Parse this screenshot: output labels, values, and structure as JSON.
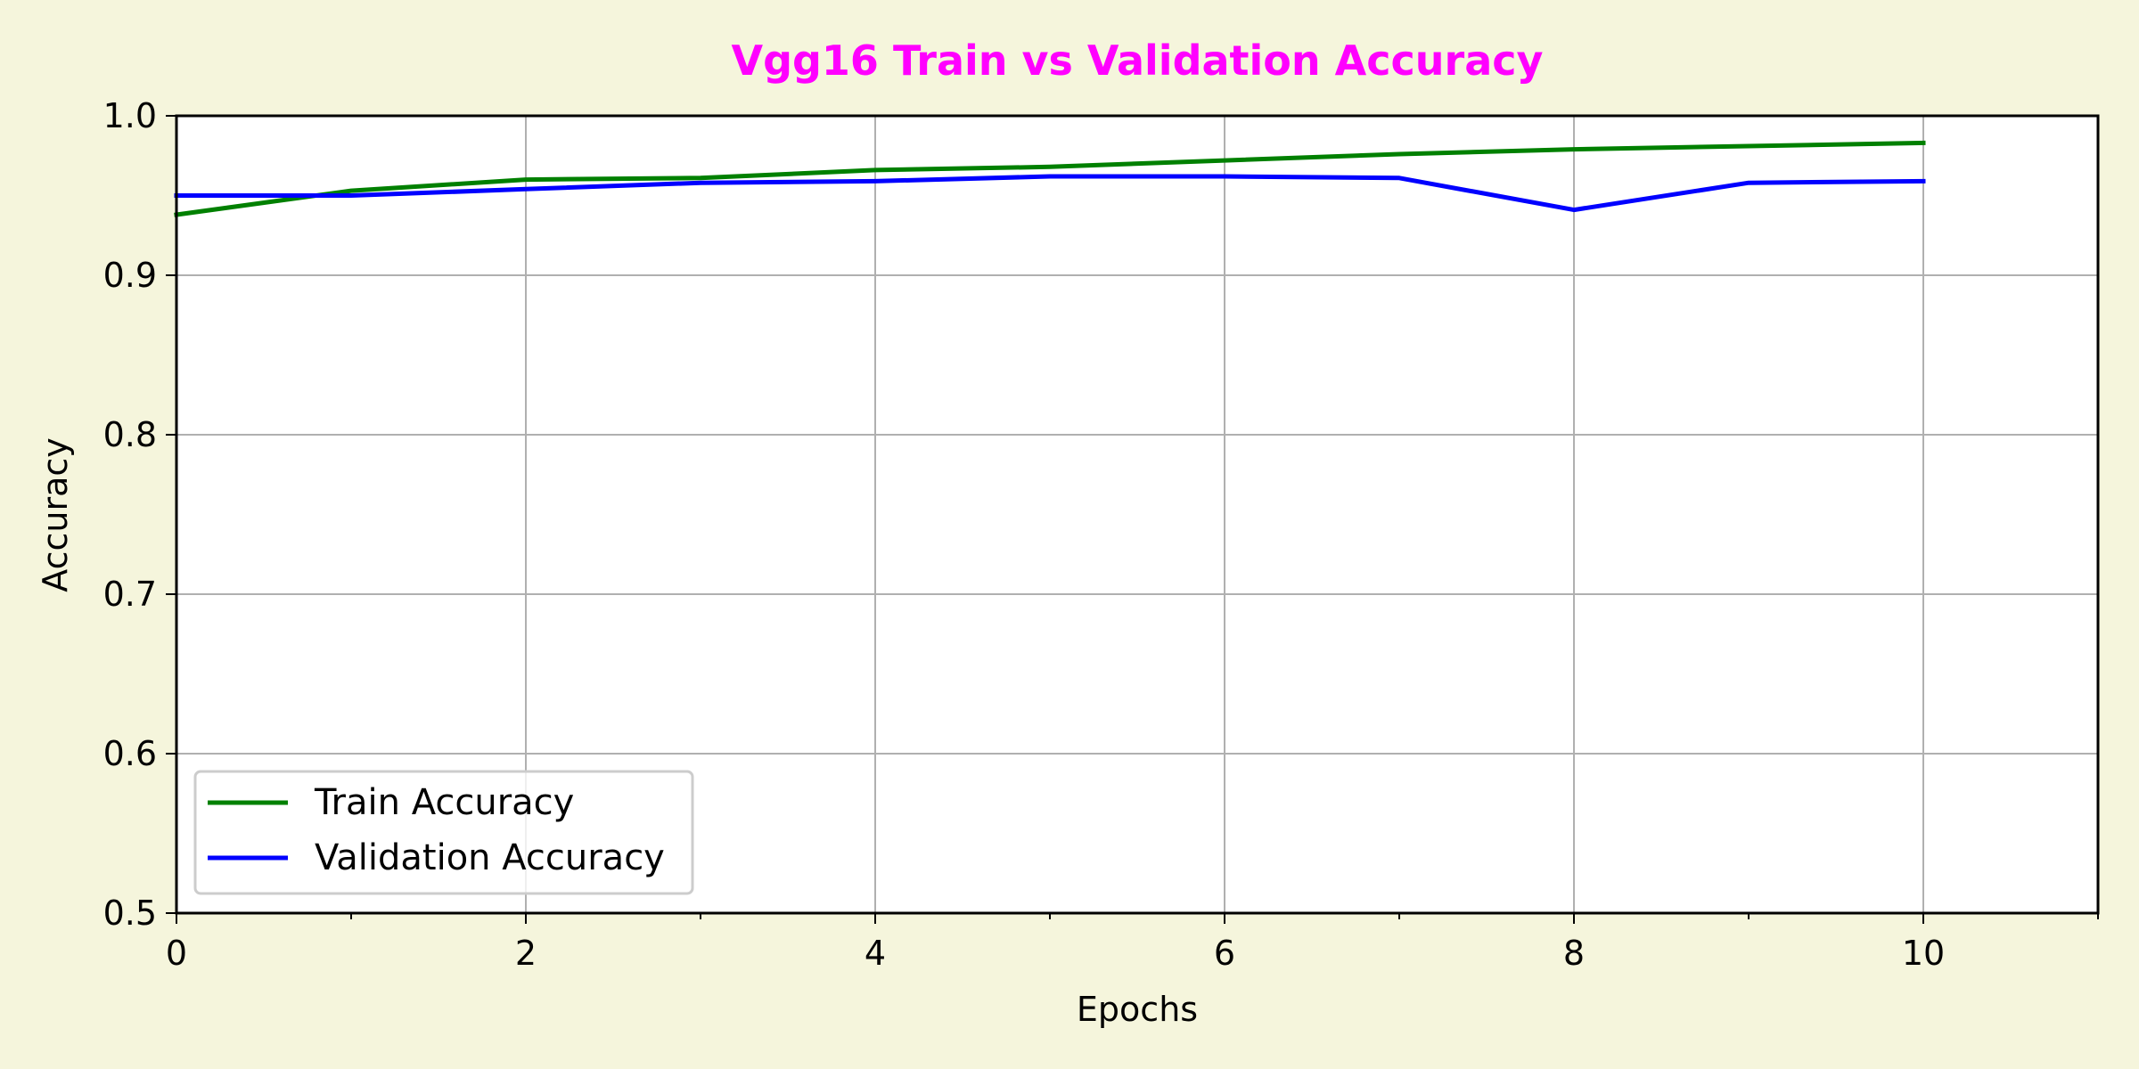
{
  "colors": {
    "background": "#f5f5dc",
    "plot_bg": "#ffffff",
    "title": "#ff00ff",
    "grid": "#b0b0b0",
    "axis": "#000000"
  },
  "chart_data": {
    "type": "line",
    "title": "Vgg16 Train vs Validation Accuracy",
    "xlabel": "Epochs",
    "ylabel": "Accuracy",
    "xlim": [
      0,
      11
    ],
    "ylim": [
      0.5,
      1.0
    ],
    "x_major_ticks": [
      0,
      2,
      4,
      6,
      8,
      10
    ],
    "x_minor_ticks": [
      1,
      3,
      5,
      7,
      9,
      11
    ],
    "y_ticks": [
      0.5,
      0.6,
      0.7,
      0.8,
      0.9,
      1.0
    ],
    "x_tick_labels": [
      "0",
      "2",
      "4",
      "6",
      "8",
      "10"
    ],
    "y_tick_labels": [
      "0.5",
      "0.6",
      "0.7",
      "0.8",
      "0.9",
      "1.0"
    ],
    "grid": true,
    "legend_position": "lower-left",
    "x": [
      0,
      1,
      2,
      3,
      4,
      5,
      6,
      7,
      8,
      9,
      10
    ],
    "series": [
      {
        "name": "Train Accuracy",
        "color": "#008000",
        "values": [
          0.938,
          0.953,
          0.96,
          0.961,
          0.966,
          0.968,
          0.972,
          0.976,
          0.979,
          0.981,
          0.983
        ]
      },
      {
        "name": "Validation Accuracy",
        "color": "#0000ff",
        "values": [
          0.95,
          0.95,
          0.954,
          0.958,
          0.959,
          0.962,
          0.962,
          0.961,
          0.941,
          0.958,
          0.959
        ]
      }
    ]
  }
}
